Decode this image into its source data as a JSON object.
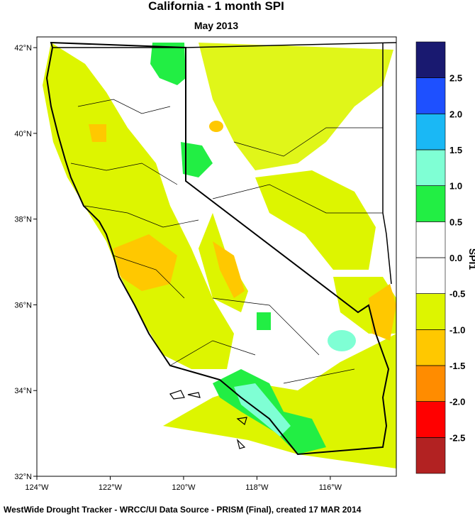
{
  "map": {
    "title": "California - 1 month SPI",
    "subtitle": "May 2013",
    "xlim": [
      -124,
      -114.2
    ],
    "ylim": [
      32,
      42.25
    ],
    "xticks": [
      {
        "value": -124,
        "label": "124°W"
      },
      {
        "value": -122,
        "label": "122°W"
      },
      {
        "value": -120,
        "label": "120°W"
      },
      {
        "value": -118,
        "label": "118°W"
      },
      {
        "value": -116,
        "label": "116°W"
      }
    ],
    "yticks": [
      {
        "value": 32,
        "label": "32°N"
      },
      {
        "value": 34,
        "label": "34°N"
      },
      {
        "value": 36,
        "label": "36°N"
      },
      {
        "value": 38,
        "label": "38°N"
      },
      {
        "value": 40,
        "label": "40°N"
      },
      {
        "value": 42,
        "label": "42°N"
      }
    ],
    "colorbar": {
      "label": "SPI1",
      "clim": [
        -3,
        3
      ],
      "colors": [
        "#b22222",
        "#ff0000",
        "#ff8c00",
        "#ffc800",
        "#ddf500",
        "#ffffff",
        "#ffffff",
        "#22ee44",
        "#7fffd4",
        "#1ab8f5",
        "#1e50ff",
        "#191970"
      ],
      "ticks": [
        -2.5,
        {
          "value": -2,
          "label": "-2.0"
        },
        -1.5,
        {
          "value": -1,
          "label": "-1.0"
        },
        -0.5,
        {
          "value": 0,
          "label": "0.0"
        },
        0.5,
        {
          "value": 1,
          "label": "1.0"
        },
        1.5,
        {
          "value": 2,
          "label": "2.0"
        },
        2.5
      ]
    },
    "footer": "WestWide Drought Tracker - WRCC/UI  Data Source - PRISM (Final), created 17 MAR 2014"
  }
}
